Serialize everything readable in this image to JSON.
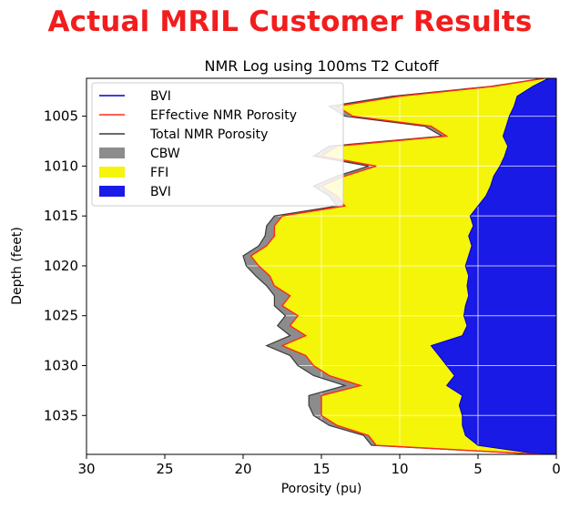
{
  "headline": "Actual MRIL Customer Results",
  "colors": {
    "headline": "#f21d1d",
    "bvi_fill": "#1a1ae6",
    "ffi_fill": "#f5f50a",
    "cbw_fill": "#8c8c8c",
    "effective_line": "#ff2a1a",
    "total_line": "#3a3a3a",
    "bvi_line": "#0000cc"
  },
  "chart_data": {
    "type": "area",
    "title": "NMR Log using 100ms T2 Cutoff",
    "xlabel": "Porosity (pu)",
    "ylabel": "Depth (feet)",
    "xlim": [
      30,
      0
    ],
    "ylim": [
      1038.9,
      1001.2
    ],
    "x_reversed": true,
    "y_reversed": true,
    "grid": true,
    "legend_position": "top-left",
    "xticks": [
      30,
      25,
      20,
      15,
      10,
      5,
      0
    ],
    "yticks": [
      1005,
      1010,
      1015,
      1020,
      1025,
      1030,
      1035
    ],
    "legend": [
      {
        "label": "BVI",
        "kind": "line",
        "color": "#0000cc"
      },
      {
        "label": "EFfective NMR Porosity",
        "kind": "line",
        "color": "#ff2a1a"
      },
      {
        "label": "Total NMR Porosity",
        "kind": "line",
        "color": "#3a3a3a"
      },
      {
        "label": "CBW",
        "kind": "patch",
        "color": "#8c8c8c"
      },
      {
        "label": "FFI",
        "kind": "patch",
        "color": "#f5f50a"
      },
      {
        "label": "BVI",
        "kind": "patch",
        "color": "#1a1ae6"
      }
    ],
    "depth": [
      1001.2,
      1002,
      1003,
      1004,
      1005,
      1006,
      1007,
      1008,
      1009,
      1010,
      1011,
      1012,
      1013,
      1014,
      1015,
      1016,
      1017,
      1018,
      1019,
      1020,
      1021,
      1022,
      1023,
      1024,
      1025,
      1026,
      1027,
      1028,
      1029,
      1030,
      1031,
      1032,
      1033,
      1034,
      1035,
      1036,
      1037,
      1038,
      1038.9
    ],
    "series": [
      {
        "name": "BVI",
        "values": [
          0.5,
          1.5,
          2.5,
          2.7,
          3.0,
          3.2,
          3.4,
          3.1,
          3.3,
          3.6,
          4.0,
          4.2,
          4.5,
          5.0,
          5.5,
          5.3,
          5.6,
          5.4,
          5.6,
          5.8,
          5.6,
          5.7,
          5.6,
          5.8,
          5.9,
          5.7,
          6.0,
          8.0,
          7.5,
          7.0,
          6.5,
          7.0,
          6.0,
          6.2,
          6.0,
          6.0,
          5.8,
          5.0,
          1.0
        ]
      },
      {
        "name": "EFfective NMR Porosity",
        "values": [
          0.8,
          4.0,
          10.0,
          14.0,
          13.0,
          8.0,
          7.0,
          14.0,
          15.0,
          11.5,
          13.5,
          15.0,
          14.0,
          13.5,
          17.5,
          18.0,
          18.0,
          18.5,
          19.5,
          19.0,
          18.3,
          18.0,
          17.0,
          17.5,
          16.5,
          17.0,
          16.0,
          17.5,
          16.0,
          15.5,
          14.5,
          12.5,
          15.0,
          15.0,
          15.0,
          14.0,
          12.0,
          11.5,
          1.0
        ]
      },
      {
        "name": "Total NMR Porosity",
        "values": [
          0.8,
          4.2,
          10.5,
          14.5,
          13.5,
          8.4,
          7.3,
          14.5,
          15.5,
          12.0,
          14.0,
          15.5,
          14.5,
          14.0,
          18.0,
          18.5,
          18.6,
          19.0,
          20.0,
          19.8,
          19.2,
          18.5,
          18.0,
          18.0,
          17.3,
          17.8,
          17.0,
          18.5,
          17.0,
          16.5,
          15.5,
          13.5,
          15.8,
          15.8,
          15.5,
          14.5,
          12.3,
          11.8,
          1.0
        ]
      }
    ]
  }
}
